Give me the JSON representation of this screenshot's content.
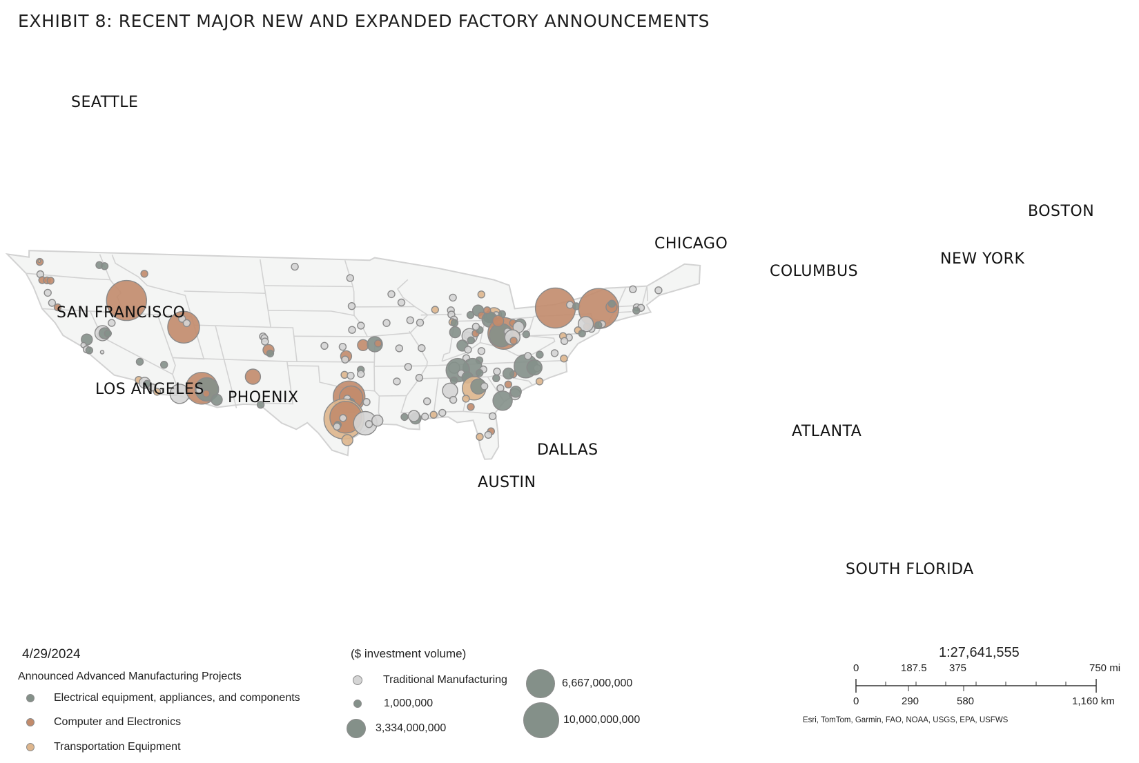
{
  "title": "EXHIBIT 8: RECENT MAJOR NEW AND EXPANDED FACTORY ANNOUNCEMENTS",
  "colors": {
    "electrical": "#849089",
    "computer": "#c28b6b",
    "transportation": "#deb68d",
    "traditional": "#d5d5d5",
    "state_fill": "#f4f5f4",
    "state_border": "#d2d2d2",
    "dot_border": "#8a8a8a"
  },
  "cities": [
    "SEATTLE",
    "SAN FRANCISCO",
    "LOS ANGELES",
    "PHOENIX",
    "DALLAS",
    "AUSTIN",
    "CHICAGO",
    "COLUMBUS",
    "ATLANTA",
    "NEW YORK",
    "BOSTON",
    "SOUTH FLORIDA"
  ],
  "legend": {
    "date": "4/29/2024",
    "heading": "Announced Advanced Manufacturing Projects",
    "categories": [
      {
        "label": "Electrical equipment, appliances, and components",
        "color": "#849089"
      },
      {
        "label": "Computer and Electronics",
        "color": "#c28b6b"
      },
      {
        "label": "Transportation Equipment",
        "color": "#deb68d"
      }
    ],
    "volume_heading": "($ investment volume)",
    "traditional_label": "Traditional Manufacturing",
    "sizes": [
      {
        "label": "1,000,000",
        "value": 1000000
      },
      {
        "label": "3,334,000,000",
        "value": 3334000000
      },
      {
        "label": "6,667,000,000",
        "value": 6667000000
      },
      {
        "label": "10,000,000,000",
        "value": 10000000000
      }
    ]
  },
  "scale": {
    "ratio": "1:27,641,555",
    "mi_labels": [
      "0",
      "187.5",
      "375",
      "750 mi"
    ],
    "km_labels": [
      "0",
      "290",
      "580",
      "1,160 km"
    ]
  },
  "credit": "Esri, TomTom, Garmin, FAO, NOAA, USGS, EPA, USFWS",
  "points": [
    {
      "t": "c",
      "s": 1,
      "lon": -122.3,
      "lat": 47.7
    },
    {
      "t": "t",
      "s": 0.5,
      "lon": -122.3,
      "lat": 47.8
    },
    {
      "t": "e",
      "s": 1,
      "lon": -117.4,
      "lat": 47.7
    },
    {
      "t": "e",
      "s": 1,
      "lon": -117.0,
      "lat": 47.6
    },
    {
      "t": "n",
      "s": 1,
      "lon": -122.8,
      "lat": 46.2
    },
    {
      "t": "c",
      "s": 1,
      "lon": -122.9,
      "lat": 45.5
    },
    {
      "t": "c",
      "s": 1,
      "lon": -122.5,
      "lat": 45.5
    },
    {
      "t": "c",
      "s": 1,
      "lon": -122.2,
      "lat": 45.5
    },
    {
      "t": "n",
      "s": 1,
      "lon": -123.0,
      "lat": 44.0
    },
    {
      "t": "n",
      "s": 1,
      "lon": -123.1,
      "lat": 42.8
    },
    {
      "t": "c",
      "s": 1,
      "lon": -122.8,
      "lat": 42.3
    },
    {
      "t": "c",
      "s": 1,
      "lon": -113.9,
      "lat": 46.9
    },
    {
      "t": "c",
      "s": 5,
      "lon": -116.3,
      "lat": 43.6
    },
    {
      "t": "n",
      "s": 1,
      "lon": -118.5,
      "lat": 40.8
    },
    {
      "t": "e",
      "s": 1,
      "lon": -120.0,
      "lat": 39.3
    },
    {
      "t": "n",
      "s": 2,
      "lon": -119.8,
      "lat": 39.5
    },
    {
      "t": "e",
      "s": 1.5,
      "lon": -119.6,
      "lat": 39.5
    },
    {
      "t": "e",
      "s": 1,
      "lon": -119.3,
      "lat": 39.5
    },
    {
      "t": "e",
      "s": 1.5,
      "lon": -121.6,
      "lat": 38.6
    },
    {
      "t": "n",
      "s": 0.8,
      "lon": -122.2,
      "lat": 37.9
    },
    {
      "t": "n",
      "s": 1,
      "lon": -122.1,
      "lat": 37.4
    },
    {
      "t": "e",
      "s": 1,
      "lon": -121.9,
      "lat": 37.3
    },
    {
      "t": "n",
      "s": 0.6,
      "lon": -120.7,
      "lat": 37.2
    },
    {
      "t": "e",
      "s": 1,
      "lon": -117.4,
      "lat": 36.3
    },
    {
      "t": "e",
      "s": 1,
      "lon": -115.1,
      "lat": 36.1
    },
    {
      "t": "t",
      "s": 1,
      "lon": -118.3,
      "lat": 34.1
    },
    {
      "t": "n",
      "s": 1.5,
      "lon": -117.8,
      "lat": 33.8
    },
    {
      "t": "e",
      "s": 1,
      "lon": -117.6,
      "lat": 33.7
    },
    {
      "t": "n",
      "s": 1,
      "lon": -117.2,
      "lat": 33.3
    },
    {
      "t": "t",
      "s": 1,
      "lon": -116.9,
      "lat": 32.8
    },
    {
      "t": "n",
      "s": 1,
      "lon": -115.0,
      "lat": 32.9
    },
    {
      "t": "n",
      "s": 2.5,
      "lon": -114.6,
      "lat": 32.7
    },
    {
      "t": "c",
      "s": 4,
      "lon": -112.1,
      "lat": 33.5
    },
    {
      "t": "e",
      "s": 3,
      "lon": -111.6,
      "lat": 33.4
    },
    {
      "t": "n",
      "s": 1,
      "lon": -112.4,
      "lat": 33.3
    },
    {
      "t": "c",
      "s": 1,
      "lon": -111.8,
      "lat": 32.9
    },
    {
      "t": "e",
      "s": 1.5,
      "lon": -110.9,
      "lat": 32.2
    },
    {
      "t": "c",
      "s": 4,
      "lon": -112.0,
      "lat": 40.7
    },
    {
      "t": "n",
      "s": 1,
      "lon": -111.9,
      "lat": 41.7
    },
    {
      "t": "n",
      "s": 1,
      "lon": -111.6,
      "lat": 41.2
    },
    {
      "t": "n",
      "s": 1,
      "lon": -104.9,
      "lat": 39.9
    },
    {
      "t": "n",
      "s": 1,
      "lon": -104.8,
      "lat": 39.7
    },
    {
      "t": "n",
      "s": 1,
      "lon": -104.8,
      "lat": 39.3
    },
    {
      "t": "c",
      "s": 1.5,
      "lon": -104.6,
      "lat": 38.3
    },
    {
      "t": "e",
      "s": 1,
      "lon": -104.5,
      "lat": 37.9
    },
    {
      "t": "c",
      "s": 2,
      "lon": -106.6,
      "lat": 35.1
    },
    {
      "t": "e",
      "s": 1,
      "lon": -106.4,
      "lat": 31.8
    },
    {
      "t": "n",
      "s": 1,
      "lon": -101.3,
      "lat": 48.2
    },
    {
      "t": "n",
      "s": 1,
      "lon": -96.8,
      "lat": 46.9
    },
    {
      "t": "n",
      "s": 1,
      "lon": -96.7,
      "lat": 43.6
    },
    {
      "t": "n",
      "s": 1,
      "lon": -95.9,
      "lat": 41.3
    },
    {
      "t": "n",
      "s": 1,
      "lon": -96.7,
      "lat": 40.8
    },
    {
      "t": "n",
      "s": 1,
      "lon": -99.3,
      "lat": 38.9
    },
    {
      "t": "n",
      "s": 1,
      "lon": -97.6,
      "lat": 38.8
    },
    {
      "t": "c",
      "s": 1.5,
      "lon": -97.3,
      "lat": 37.7
    },
    {
      "t": "n",
      "s": 1,
      "lon": -97.4,
      "lat": 37.3
    },
    {
      "t": "c",
      "s": 1.5,
      "lon": -95.7,
      "lat": 39.0
    },
    {
      "t": "e",
      "s": 2,
      "lon": -94.6,
      "lat": 39.1
    },
    {
      "t": "c",
      "s": 1,
      "lon": -94.3,
      "lat": 39.2
    },
    {
      "t": "t",
      "s": 1,
      "lon": -97.5,
      "lat": 35.5
    },
    {
      "t": "n",
      "s": 1,
      "lon": -96.9,
      "lat": 35.4
    },
    {
      "t": "e",
      "s": 1,
      "lon": -95.9,
      "lat": 36.1
    },
    {
      "t": "n",
      "s": 1,
      "lon": -95.9,
      "lat": 35.6
    },
    {
      "t": "c",
      "s": 4,
      "lon": -97.1,
      "lat": 32.9
    },
    {
      "t": "c",
      "s": 3,
      "lon": -96.9,
      "lat": 32.8
    },
    {
      "t": "n",
      "s": 1,
      "lon": -97.3,
      "lat": 32.7
    },
    {
      "t": "e",
      "s": 1,
      "lon": -96.9,
      "lat": 32.3
    },
    {
      "t": "n",
      "s": 1,
      "lon": -95.3,
      "lat": 32.3
    },
    {
      "t": "t",
      "s": 5,
      "lon": -97.7,
      "lat": 30.3
    },
    {
      "t": "c",
      "s": 4,
      "lon": -97.5,
      "lat": 30.5
    },
    {
      "t": "n",
      "s": 1,
      "lon": -97.8,
      "lat": 30.4
    },
    {
      "t": "e",
      "s": 1,
      "lon": -98.4,
      "lat": 29.6
    },
    {
      "t": "n",
      "s": 1,
      "lon": -98.5,
      "lat": 29.4
    },
    {
      "t": "n",
      "s": 3,
      "lon": -95.4,
      "lat": 29.8
    },
    {
      "t": "n",
      "s": 1,
      "lon": -95.0,
      "lat": 29.7
    },
    {
      "t": "n",
      "s": 1.5,
      "lon": -94.1,
      "lat": 30.1
    },
    {
      "t": "t",
      "s": 1.5,
      "lon": -97.4,
      "lat": 27.8
    },
    {
      "t": "n",
      "s": 1,
      "lon": -93.3,
      "lat": 45.0
    },
    {
      "t": "n",
      "s": 1,
      "lon": -92.4,
      "lat": 44.0
    },
    {
      "t": "n",
      "s": 1,
      "lon": -91.5,
      "lat": 41.9
    },
    {
      "t": "n",
      "s": 1,
      "lon": -93.6,
      "lat": 41.6
    },
    {
      "t": "n",
      "s": 1,
      "lon": -90.6,
      "lat": 41.6
    },
    {
      "t": "n",
      "s": 1,
      "lon": -92.3,
      "lat": 38.6
    },
    {
      "t": "n",
      "s": 1,
      "lon": -90.2,
      "lat": 38.6
    },
    {
      "t": "n",
      "s": 1,
      "lon": -91.3,
      "lat": 36.4
    },
    {
      "t": "n",
      "s": 1,
      "lon": -92.3,
      "lat": 34.7
    },
    {
      "t": "n",
      "s": 1,
      "lon": -90.1,
      "lat": 35.1
    },
    {
      "t": "n",
      "s": 1,
      "lon": -88.0,
      "lat": 44.5
    },
    {
      "t": "t",
      "s": 1,
      "lon": -89.4,
      "lat": 43.1
    },
    {
      "t": "n",
      "s": 1,
      "lon": -88.0,
      "lat": 43.0
    },
    {
      "t": "n",
      "s": 1,
      "lon": -87.9,
      "lat": 42.5
    },
    {
      "t": "n",
      "s": 1,
      "lon": -87.6,
      "lat": 41.9
    },
    {
      "t": "t",
      "s": 1,
      "lon": -87.7,
      "lat": 41.6
    },
    {
      "t": "e",
      "s": 1,
      "lon": -87.5,
      "lat": 41.5
    },
    {
      "t": "t",
      "s": 1,
      "lon": -85.6,
      "lat": 44.8
    },
    {
      "t": "e",
      "s": 1.5,
      "lon": -85.6,
      "lat": 42.9
    },
    {
      "t": "c",
      "s": 1,
      "lon": -85.2,
      "lat": 42.3
    },
    {
      "t": "t",
      "s": 2,
      "lon": -84.1,
      "lat": 42.3
    },
    {
      "t": "n",
      "s": 1,
      "lon": -83.9,
      "lat": 42.3
    },
    {
      "t": "e",
      "s": 1.5,
      "lon": -84.5,
      "lat": 42.1
    },
    {
      "t": "e",
      "s": 2,
      "lon": -84.4,
      "lat": 41.8
    },
    {
      "t": "e",
      "s": 1,
      "lon": -83.4,
      "lat": 42.4
    },
    {
      "t": "c",
      "s": 1,
      "lon": -84.8,
      "lat": 42.9
    },
    {
      "t": "e",
      "s": 1,
      "lon": -86.2,
      "lat": 42.4
    },
    {
      "t": "e",
      "s": 1.5,
      "lon": -87.3,
      "lat": 40.4
    },
    {
      "t": "n",
      "s": 1,
      "lon": -86.1,
      "lat": 40.0
    },
    {
      "t": "n",
      "s": 2,
      "lon": -85.9,
      "lat": 39.9
    },
    {
      "t": "e",
      "s": 1,
      "lon": -85.7,
      "lat": 39.4
    },
    {
      "t": "c",
      "s": 1,
      "lon": -85.4,
      "lat": 40.2
    },
    {
      "t": "e",
      "s": 1,
      "lon": -85.1,
      "lat": 40.6
    },
    {
      "t": "n",
      "s": 1,
      "lon": -85.5,
      "lat": 41.0
    },
    {
      "t": "e",
      "s": 1.5,
      "lon": -86.4,
      "lat": 38.8
    },
    {
      "t": "n",
      "s": 1,
      "lon": -85.8,
      "lat": 38.3
    },
    {
      "t": "c",
      "s": 4,
      "lon": -82.8,
      "lat": 40.1
    },
    {
      "t": "e",
      "s": 3,
      "lon": -83.0,
      "lat": 39.9
    },
    {
      "t": "n",
      "s": 1,
      "lon": -82.5,
      "lat": 40.3
    },
    {
      "t": "c",
      "s": 1.5,
      "lon": -83.6,
      "lat": 41.6
    },
    {
      "t": "c",
      "s": 1,
      "lon": -82.2,
      "lat": 41.3
    },
    {
      "t": "e",
      "s": 1.5,
      "lon": -81.5,
      "lat": 41.1
    },
    {
      "t": "n",
      "s": 1.5,
      "lon": -81.6,
      "lat": 40.8
    },
    {
      "t": "n",
      "s": 2,
      "lon": -81.9,
      "lat": 39.6
    },
    {
      "t": "c",
      "s": 1,
      "lon": -81.7,
      "lat": 39.2
    },
    {
      "t": "e",
      "s": 1,
      "lon": -80.7,
      "lat": 39.9
    },
    {
      "t": "c",
      "s": 5,
      "lon": -78.8,
      "lat": 42.9
    },
    {
      "t": "n",
      "s": 1,
      "lon": -77.6,
      "lat": 43.2
    },
    {
      "t": "e",
      "s": 1,
      "lon": -77.0,
      "lat": 43.0
    },
    {
      "t": "c",
      "s": 5,
      "lon": -74.9,
      "lat": 42.6
    },
    {
      "t": "c",
      "s": 1.5,
      "lon": -73.8,
      "lat": 42.7
    },
    {
      "t": "e",
      "s": 1,
      "lon": -73.9,
      "lat": 43.1
    },
    {
      "t": "n",
      "s": 1,
      "lon": -71.5,
      "lat": 42.5
    },
    {
      "t": "n",
      "s": 1,
      "lon": -71.1,
      "lat": 42.4
    },
    {
      "t": "e",
      "s": 1,
      "lon": -71.4,
      "lat": 42.1
    },
    {
      "t": "n",
      "s": 1,
      "lon": -70.3,
      "lat": 44.4
    },
    {
      "t": "n",
      "s": 1,
      "lon": -72.6,
      "lat": 44.7
    },
    {
      "t": "n",
      "s": 1,
      "lon": -74.0,
      "lat": 40.7
    },
    {
      "t": "e",
      "s": 1,
      "lon": -74.3,
      "lat": 40.6
    },
    {
      "t": "n",
      "s": 1,
      "lon": -74.8,
      "lat": 40.2
    },
    {
      "t": "c",
      "s": 1,
      "lon": -75.3,
      "lat": 40.5
    },
    {
      "t": "n",
      "s": 2,
      "lon": -75.5,
      "lat": 40.8
    },
    {
      "t": "t",
      "s": 1,
      "lon": -76.0,
      "lat": 40.1
    },
    {
      "t": "n",
      "s": 1,
      "lon": -76.6,
      "lat": 39.3
    },
    {
      "t": "t",
      "s": 1,
      "lon": -77.2,
      "lat": 39.5
    },
    {
      "t": "n",
      "s": 1,
      "lon": -76.9,
      "lat": 38.9
    },
    {
      "t": "e",
      "s": 1,
      "lon": -75.5,
      "lat": 39.7
    },
    {
      "t": "n",
      "s": 1,
      "lon": -84.5,
      "lat": 38.1
    },
    {
      "t": "n",
      "s": 1,
      "lon": -85.8,
      "lat": 37.3
    },
    {
      "t": "e",
      "s": 1,
      "lon": -84.5,
      "lat": 37.0
    },
    {
      "t": "e",
      "s": 2.5,
      "lon": -85.0,
      "lat": 36.1
    },
    {
      "t": "n",
      "s": 1.5,
      "lon": -86.8,
      "lat": 36.2
    },
    {
      "t": "e",
      "s": 3,
      "lon": -86.4,
      "lat": 35.9
    },
    {
      "t": "n",
      "s": 1,
      "lon": -86.0,
      "lat": 35.5
    },
    {
      "t": "e",
      "s": 1.5,
      "lon": -85.3,
      "lat": 35.0
    },
    {
      "t": "n",
      "s": 1,
      "lon": -83.9,
      "lat": 35.9
    },
    {
      "t": "e",
      "s": 1,
      "lon": -84.2,
      "lat": 35.5
    },
    {
      "t": "e",
      "s": 3,
      "lon": -79.8,
      "lat": 36.1
    },
    {
      "t": "n",
      "s": 1,
      "lon": -78.6,
      "lat": 35.8
    },
    {
      "t": "e",
      "s": 2,
      "lon": -78.9,
      "lat": 35.9
    },
    {
      "t": "c",
      "s": 1,
      "lon": -80.8,
      "lat": 35.2
    },
    {
      "t": "e",
      "s": 1.5,
      "lon": -81.3,
      "lat": 35.3
    },
    {
      "t": "n",
      "s": 1,
      "lon": -82.5,
      "lat": 35.6
    },
    {
      "t": "t",
      "s": 1,
      "lon": -77.9,
      "lat": 34.2
    },
    {
      "t": "n",
      "s": 1.5,
      "lon": -80.0,
      "lat": 32.8
    },
    {
      "t": "e",
      "s": 1.5,
      "lon": -80.0,
      "lat": 33.1
    },
    {
      "t": "c",
      "s": 1,
      "lon": -81.0,
      "lat": 34.0
    },
    {
      "t": "e",
      "s": 1,
      "lon": -82.4,
      "lat": 34.8
    },
    {
      "t": "n",
      "s": 1,
      "lon": -81.7,
      "lat": 33.6
    },
    {
      "t": "t",
      "s": 3,
      "lon": -84.4,
      "lat": 33.7
    },
    {
      "t": "e",
      "s": 2,
      "lon": -84.0,
      "lat": 33.9
    },
    {
      "t": "n",
      "s": 1,
      "lon": -83.4,
      "lat": 33.9
    },
    {
      "t": "e",
      "s": 2.5,
      "lon": -81.1,
      "lat": 32.1
    },
    {
      "t": "t",
      "s": 1,
      "lon": -85.0,
      "lat": 32.5
    },
    {
      "t": "c",
      "s": 1,
      "lon": -84.3,
      "lat": 31.5
    },
    {
      "t": "n",
      "s": 2,
      "lon": -86.8,
      "lat": 33.5
    },
    {
      "t": "e",
      "s": 1,
      "lon": -86.6,
      "lat": 34.7
    },
    {
      "t": "n",
      "s": 1,
      "lon": -86.3,
      "lat": 32.4
    },
    {
      "t": "t",
      "s": 1,
      "lon": -88.1,
      "lat": 30.7
    },
    {
      "t": "n",
      "s": 1,
      "lon": -87.2,
      "lat": 30.9
    },
    {
      "t": "n",
      "s": 1,
      "lon": -89.0,
      "lat": 32.3
    },
    {
      "t": "e",
      "s": 1.5,
      "lon": -90.0,
      "lat": 30.3
    },
    {
      "t": "n",
      "s": 1.5,
      "lon": -90.2,
      "lat": 30.6
    },
    {
      "t": "e",
      "s": 1,
      "lon": -91.2,
      "lat": 30.5
    },
    {
      "t": "n",
      "s": 1,
      "lon": -89.0,
      "lat": 30.5
    },
    {
      "t": "n",
      "s": 1,
      "lon": -81.7,
      "lat": 30.3
    },
    {
      "t": "c",
      "s": 1,
      "lon": -81.4,
      "lat": 28.5
    },
    {
      "t": "n",
      "s": 1,
      "lon": -81.6,
      "lat": 28.1
    },
    {
      "t": "t",
      "s": 1,
      "lon": -82.5,
      "lat": 27.9
    },
    {
      "t": "n",
      "s": 1,
      "lon": -77.4,
      "lat": 37.5
    },
    {
      "t": "e",
      "s": 1,
      "lon": -78.8,
      "lat": 37.4
    },
    {
      "t": "t",
      "s": 1,
      "lon": -76.3,
      "lat": 36.8
    },
    {
      "t": "n",
      "s": 1,
      "lon": -79.9,
      "lat": 37.3
    }
  ]
}
